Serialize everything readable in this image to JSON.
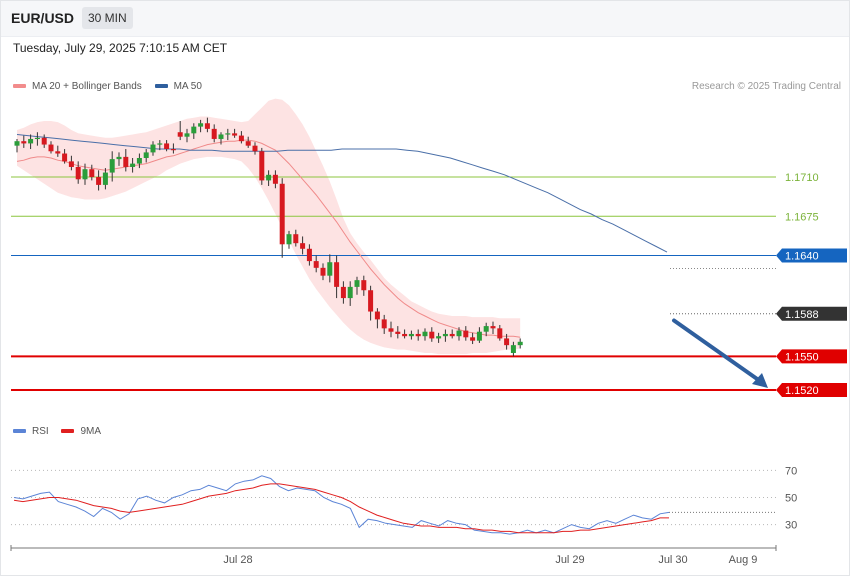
{
  "header": {
    "symbol": "EUR/USD",
    "timeframe": "30 MIN"
  },
  "timestamp": "Tuesday, July 29, 2025 7:10:15 AM CET",
  "credit": "Research © 2025 Trading Central",
  "legend_main": [
    {
      "label": "MA 20 + Bollinger Bands",
      "color": "#f28c8c"
    },
    {
      "label": "MA 50",
      "color": "#2f5f9e"
    }
  ],
  "legend_rsi": [
    {
      "label": "RSI",
      "color": "#5b84d6"
    },
    {
      "label": "9MA",
      "color": "#e02020"
    }
  ],
  "colors": {
    "up": "#2a9d3a",
    "down": "#d71920",
    "bb_fill": "#fde3e3",
    "ma20": "#f08a8a",
    "ma50": "#4a6fa8",
    "arrow": "#2f5f9e"
  },
  "chart_data": [
    {
      "type": "candlestick",
      "title": "EUR/USD 30 MIN",
      "x_ticks": [
        "Jul 28",
        "Jul 29",
        "Jul 30",
        "Aug 9"
      ],
      "ylim": [
        1.1495,
        1.1785
      ],
      "candles": [
        [
          1.1738,
          1.1744,
          1.1732,
          1.1742
        ],
        [
          1.1742,
          1.1747,
          1.1736,
          1.174
        ],
        [
          1.174,
          1.1748,
          1.1735,
          1.1744
        ],
        [
          1.1744,
          1.175,
          1.1738,
          1.1745
        ],
        [
          1.1745,
          1.1748,
          1.1736,
          1.1739
        ],
        [
          1.1739,
          1.1742,
          1.1731,
          1.1733
        ],
        [
          1.1733,
          1.1738,
          1.1728,
          1.1731
        ],
        [
          1.1731,
          1.1735,
          1.1722,
          1.1724
        ],
        [
          1.1724,
          1.1729,
          1.1716,
          1.1719
        ],
        [
          1.1719,
          1.1724,
          1.1704,
          1.1708
        ],
        [
          1.1708,
          1.1722,
          1.1703,
          1.1717
        ],
        [
          1.1717,
          1.1721,
          1.1707,
          1.171
        ],
        [
          1.171,
          1.1716,
          1.1698,
          1.1703
        ],
        [
          1.1703,
          1.1718,
          1.1699,
          1.1714
        ],
        [
          1.1714,
          1.1733,
          1.1706,
          1.1726
        ],
        [
          1.1726,
          1.1732,
          1.172,
          1.1728
        ],
        [
          1.1728,
          1.1735,
          1.1715,
          1.1719
        ],
        [
          1.1719,
          1.1727,
          1.1714,
          1.1722
        ],
        [
          1.1722,
          1.1731,
          1.1718,
          1.1727
        ],
        [
          1.1727,
          1.1735,
          1.1723,
          1.1732
        ],
        [
          1.1732,
          1.1742,
          1.1729,
          1.1739
        ],
        [
          1.1739,
          1.1743,
          1.1734,
          1.174
        ],
        [
          1.174,
          1.1743,
          1.1733,
          1.1735
        ],
        [
          1.1735,
          1.174,
          1.1731,
          1.1734
        ],
        [
          1.175,
          1.176,
          1.1743,
          1.1746
        ],
        [
          1.1746,
          1.1753,
          1.1741,
          1.1749
        ],
        [
          1.1749,
          1.1758,
          1.1744,
          1.1755
        ],
        [
          1.1755,
          1.1761,
          1.175,
          1.1758
        ],
        [
          1.1758,
          1.1763,
          1.175,
          1.1753
        ],
        [
          1.1753,
          1.1757,
          1.1741,
          1.1744
        ],
        [
          1.1744,
          1.175,
          1.1739,
          1.1748
        ],
        [
          1.1748,
          1.1753,
          1.1743,
          1.1749
        ],
        [
          1.1749,
          1.1753,
          1.1745,
          1.1747
        ],
        [
          1.1747,
          1.1751,
          1.174,
          1.1742
        ],
        [
          1.1742,
          1.1746,
          1.1736,
          1.1738
        ],
        [
          1.1738,
          1.1741,
          1.173,
          1.1733
        ],
        [
          1.1733,
          1.1736,
          1.1703,
          1.1707
        ],
        [
          1.1707,
          1.1716,
          1.1702,
          1.1712
        ],
        [
          1.1712,
          1.1716,
          1.17,
          1.1704
        ],
        [
          1.1704,
          1.1709,
          1.1638,
          1.165
        ],
        [
          1.165,
          1.1662,
          1.1646,
          1.1659
        ],
        [
          1.1659,
          1.1663,
          1.1648,
          1.1651
        ],
        [
          1.1651,
          1.1657,
          1.1641,
          1.1646
        ],
        [
          1.1646,
          1.165,
          1.1631,
          1.1635
        ],
        [
          1.1635,
          1.164,
          1.1625,
          1.1629
        ],
        [
          1.1629,
          1.1633,
          1.1618,
          1.1622
        ],
        [
          1.1622,
          1.1641,
          1.1616,
          1.1634
        ],
        [
          1.1634,
          1.164,
          1.1602,
          1.1612
        ],
        [
          1.1612,
          1.1617,
          1.1597,
          1.1602
        ],
        [
          1.1602,
          1.1617,
          1.1595,
          1.1612
        ],
        [
          1.1612,
          1.1621,
          1.1605,
          1.1618
        ],
        [
          1.1618,
          1.1622,
          1.1604,
          1.1609
        ],
        [
          1.1609,
          1.1613,
          1.1582,
          1.159
        ],
        [
          1.159,
          1.1593,
          1.1575,
          1.1583
        ],
        [
          1.1583,
          1.1587,
          1.157,
          1.1575
        ],
        [
          1.1575,
          1.1581,
          1.1567,
          1.1572
        ],
        [
          1.1572,
          1.1577,
          1.1566,
          1.157
        ],
        [
          1.157,
          1.1574,
          1.1566,
          1.1568
        ],
        [
          1.1568,
          1.1573,
          1.1565,
          1.157
        ],
        [
          1.157,
          1.1574,
          1.1564,
          1.1568
        ],
        [
          1.1568,
          1.1575,
          1.1564,
          1.1572
        ],
        [
          1.1572,
          1.1576,
          1.1563,
          1.1566
        ],
        [
          1.1566,
          1.1571,
          1.1562,
          1.1568
        ],
        [
          1.1568,
          1.1574,
          1.1563,
          1.157
        ],
        [
          1.157,
          1.1574,
          1.1566,
          1.1568
        ],
        [
          1.1568,
          1.1576,
          1.1564,
          1.1573
        ],
        [
          1.1573,
          1.1577,
          1.1564,
          1.1567
        ],
        [
          1.1567,
          1.1571,
          1.1561,
          1.1564
        ],
        [
          1.1564,
          1.1576,
          1.1562,
          1.1572
        ],
        [
          1.1572,
          1.158,
          1.1568,
          1.1577
        ],
        [
          1.1577,
          1.1581,
          1.157,
          1.1575
        ],
        [
          1.1575,
          1.1578,
          1.1564,
          1.1566
        ],
        [
          1.1566,
          1.157,
          1.1556,
          1.156
        ],
        [
          1.1553,
          1.1563,
          1.155,
          1.156
        ],
        [
          1.156,
          1.1566,
          1.1557,
          1.1563
        ]
      ],
      "ma20": [
        1.1724,
        1.1725,
        1.1727,
        1.1728,
        1.1728,
        1.1727,
        1.1725,
        1.1724,
        1.1722,
        1.172,
        1.1719,
        1.1718,
        1.1717,
        1.1716,
        1.1717,
        1.1718,
        1.1719,
        1.172,
        1.1721,
        1.1722,
        1.1724,
        1.1726,
        1.1728,
        1.1729,
        1.1731,
        1.1733,
        1.1735,
        1.1737,
        1.1739,
        1.174,
        1.1741,
        1.1742,
        1.1742,
        1.1743,
        1.1743,
        1.1742,
        1.174,
        1.1737,
        1.1734,
        1.1728,
        1.1722,
        1.1715,
        1.1708,
        1.1701,
        1.1694,
        1.1686,
        1.1678,
        1.167,
        1.1661,
        1.1652,
        1.1644,
        1.1636,
        1.1628,
        1.1621,
        1.1614,
        1.1608,
        1.1602,
        1.1597,
        1.1593,
        1.1589,
        1.1586,
        1.1583,
        1.158,
        1.1578,
        1.1576,
        1.1574,
        1.1572,
        1.1571,
        1.157,
        1.1569,
        1.1569,
        1.1568,
        1.1568,
        1.1568,
        1.1567
      ],
      "bb_upper": [
        1.1752,
        1.1754,
        1.1757,
        1.1759,
        1.176,
        1.176,
        1.1759,
        1.1756,
        1.1752,
        1.1749,
        1.1748,
        1.1747,
        1.1746,
        1.1745,
        1.1745,
        1.1746,
        1.1747,
        1.1748,
        1.1749,
        1.175,
        1.1752,
        1.1754,
        1.1756,
        1.1758,
        1.176,
        1.1762,
        1.1763,
        1.1764,
        1.1764,
        1.1763,
        1.1762,
        1.1761,
        1.176,
        1.1759,
        1.176,
        1.1766,
        1.1772,
        1.1778,
        1.178,
        1.1779,
        1.1774,
        1.1766,
        1.1757,
        1.1746,
        1.1733,
        1.172,
        1.1706,
        1.169,
        1.1673,
        1.166,
        1.1651,
        1.1643,
        1.1636,
        1.1628,
        1.162,
        1.1614,
        1.1609,
        1.1604,
        1.1599,
        1.1596,
        1.1593,
        1.159,
        1.1588,
        1.1587,
        1.1586,
        1.1586,
        1.1586,
        1.1585,
        1.1585,
        1.1585,
        1.1585,
        1.1584,
        1.1584,
        1.1584,
        1.1584
      ],
      "bb_lower": [
        1.172,
        1.1716,
        1.1712,
        1.1708,
        1.1704,
        1.17,
        1.1696,
        1.1694,
        1.1692,
        1.1691,
        1.169,
        1.169,
        1.169,
        1.1691,
        1.1693,
        1.1695,
        1.1697,
        1.17,
        1.1703,
        1.1706,
        1.1709,
        1.1712,
        1.1716,
        1.1719,
        1.1722,
        1.1724,
        1.1726,
        1.1727,
        1.1728,
        1.1728,
        1.1728,
        1.1727,
        1.1726,
        1.1724,
        1.1718,
        1.171,
        1.17,
        1.1689,
        1.1677,
        1.1665,
        1.1653,
        1.1641,
        1.163,
        1.1619,
        1.161,
        1.1602,
        1.1594,
        1.1587,
        1.158,
        1.1574,
        1.1569,
        1.1565,
        1.1562,
        1.156,
        1.1558,
        1.1557,
        1.1556,
        1.1556,
        1.1555,
        1.1554,
        1.1553,
        1.1553,
        1.1552,
        1.1552,
        1.1552,
        1.1552,
        1.1552,
        1.1553,
        1.1553,
        1.1553,
        1.1554,
        1.1555,
        1.1556,
        1.1556,
        1.1557
      ],
      "ma50": [
        1.1748,
        1.1747,
        1.1746,
        1.1745,
        1.1744,
        1.1743,
        1.1742,
        1.1741,
        1.174,
        1.1739,
        1.1738,
        1.1737,
        1.1736,
        1.1735,
        1.1735,
        1.1735,
        1.1734,
        1.1734,
        1.1734,
        1.1733,
        1.1733,
        1.1733,
        1.1733,
        1.1733,
        1.1733,
        1.1734,
        1.1734,
        1.1734,
        1.1734,
        1.1734,
        1.1735,
        1.1735,
        1.1735,
        1.1735,
        1.1735,
        1.1735,
        1.1734,
        1.1733,
        1.1731,
        1.1729,
        1.1727,
        1.1724,
        1.1721,
        1.1718,
        1.1715,
        1.1712,
        1.1708,
        1.1704,
        1.17,
        1.1696,
        1.1691,
        1.1686,
        1.1681,
        1.1677,
        1.1672,
        1.1668,
        1.1663,
        1.1658,
        1.1653,
        1.1648,
        1.1643
      ],
      "levels": [
        {
          "price": "1.1710",
          "color": "#8cc63f",
          "style": "line-label"
        },
        {
          "price": "1.1675",
          "color": "#8cc63f",
          "style": "line-label"
        },
        {
          "price": "1.1640",
          "color": "#1565c0",
          "style": "tag"
        },
        {
          "price": "1.1588",
          "color": "#333333",
          "style": "tag-dotted"
        },
        {
          "price": "1.1550",
          "color": "#e00000",
          "style": "tag"
        },
        {
          "price": "1.1520",
          "color": "#e00000",
          "style": "tag"
        }
      ],
      "forecast_arrow": {
        "from": 1.1582,
        "to": 1.152
      }
    },
    {
      "type": "line",
      "title": "RSI",
      "ylim": [
        15,
        85
      ],
      "y_ticks": [
        "70",
        "50",
        "30"
      ],
      "series": [
        {
          "name": "RSI",
          "values": [
            50,
            49,
            51,
            53,
            54,
            47,
            45,
            43,
            40,
            36,
            42,
            39,
            34,
            38,
            49,
            51,
            48,
            46,
            50,
            52,
            55,
            56,
            59,
            57,
            55,
            60,
            62,
            63,
            66,
            64,
            58,
            55,
            57,
            56,
            55,
            50,
            47,
            45,
            42,
            28,
            34,
            33,
            31,
            30,
            29,
            28,
            33,
            31,
            29,
            33,
            31,
            30,
            26,
            25,
            24,
            24,
            23,
            24,
            26,
            24,
            26,
            24,
            27,
            30,
            28,
            27,
            31,
            33,
            31,
            34,
            37,
            35,
            34,
            38,
            39
          ]
        },
        {
          "name": "9MA",
          "values": [
            48,
            47,
            48,
            49,
            50,
            50,
            49,
            48,
            46,
            44,
            43,
            42,
            40,
            39,
            40,
            41,
            42,
            43,
            44,
            45,
            47,
            49,
            51,
            52,
            53,
            55,
            56,
            57,
            59,
            60,
            60,
            59,
            58,
            57,
            56,
            54,
            52,
            50,
            47,
            43,
            40,
            37,
            35,
            33,
            31,
            30,
            29,
            29,
            28,
            28,
            28,
            27,
            27,
            26,
            26,
            25,
            25,
            24,
            24,
            24,
            24,
            24,
            25,
            25,
            26,
            26,
            27,
            28,
            29,
            30,
            31,
            32,
            33,
            35,
            35
          ]
        }
      ]
    }
  ]
}
